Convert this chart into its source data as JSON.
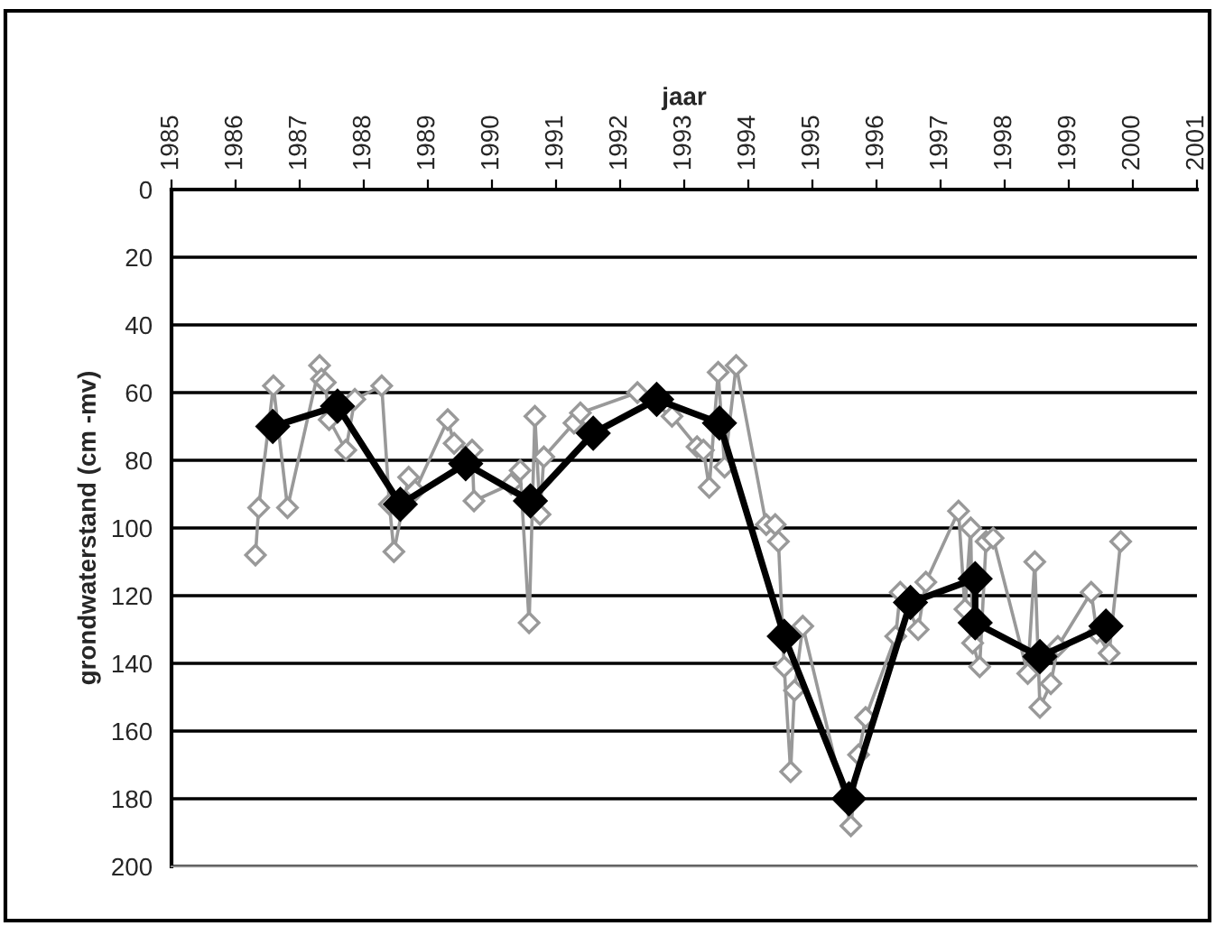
{
  "chart_data": {
    "type": "line",
    "xlabel": "jaar",
    "ylabel": "grondwaterstand (cm -mv)",
    "xlim": [
      1985,
      2001
    ],
    "xticks": [
      1985,
      1986,
      1987,
      1988,
      1989,
      1990,
      1991,
      1992,
      1993,
      1994,
      1995,
      1996,
      1997,
      1998,
      1999,
      2000,
      2001
    ],
    "ylim": [
      200,
      0
    ],
    "yticks": [
      0,
      20,
      40,
      60,
      80,
      100,
      120,
      140,
      160,
      180,
      200
    ],
    "grid": "y",
    "marker": "diamond",
    "line_style": "solid",
    "series": [
      {
        "color": "#999999",
        "x": [
          1986.31,
          1986.36,
          1986.59,
          1986.81,
          1987.31,
          1987.34,
          1987.4,
          1987.46,
          1987.72,
          1987.86,
          1988.28,
          1988.4,
          1988.47,
          1988.7,
          1988.8,
          1989.31,
          1989.41,
          1989.69,
          1989.72,
          1990.3,
          1990.44,
          1990.58,
          1990.67,
          1990.75,
          1990.81,
          1991.28,
          1991.38,
          1992.27,
          1992.81,
          1993.2,
          1993.3,
          1993.39,
          1993.53,
          1993.63,
          1993.81,
          1994.28,
          1994.42,
          1994.47,
          1994.56,
          1994.66,
          1994.72,
          1994.85,
          1995.6,
          1995.72,
          1995.83,
          1996.3,
          1996.37,
          1996.65,
          1996.77,
          1997.28,
          1997.38,
          1997.47,
          1997.5,
          1997.61,
          1997.71,
          1997.82,
          1998.36,
          1998.47,
          1998.55,
          1998.72,
          1998.83,
          1999.35,
          1999.44,
          1999.63,
          1999.81
        ],
        "values": [
          108,
          94,
          58,
          94,
          52,
          56,
          57,
          68,
          77,
          62,
          58,
          93,
          107,
          85,
          89,
          68,
          75,
          77,
          92,
          87,
          83,
          128,
          67,
          96,
          79,
          69,
          66,
          60,
          67,
          76,
          77,
          88,
          54,
          82,
          52,
          99,
          99,
          104,
          141,
          172,
          148,
          129,
          188,
          167,
          156,
          132,
          119,
          130,
          116,
          95,
          124,
          100,
          134,
          141,
          104,
          103,
          143,
          110,
          153,
          146,
          135,
          119,
          131,
          137,
          104
        ]
      },
      {
        "color": "#000000",
        "x": [
          1986.58,
          1987.59,
          1988.57,
          1989.59,
          1990.6,
          1991.58,
          1992.57,
          1993.55,
          1994.56,
          1995.57,
          1996.53,
          1997.54,
          1997.54,
          1998.55,
          1999.58
        ],
        "values": [
          70,
          64,
          93,
          81,
          92,
          72,
          62,
          69,
          132,
          180,
          122,
          115,
          128,
          138,
          129
        ]
      }
    ]
  }
}
